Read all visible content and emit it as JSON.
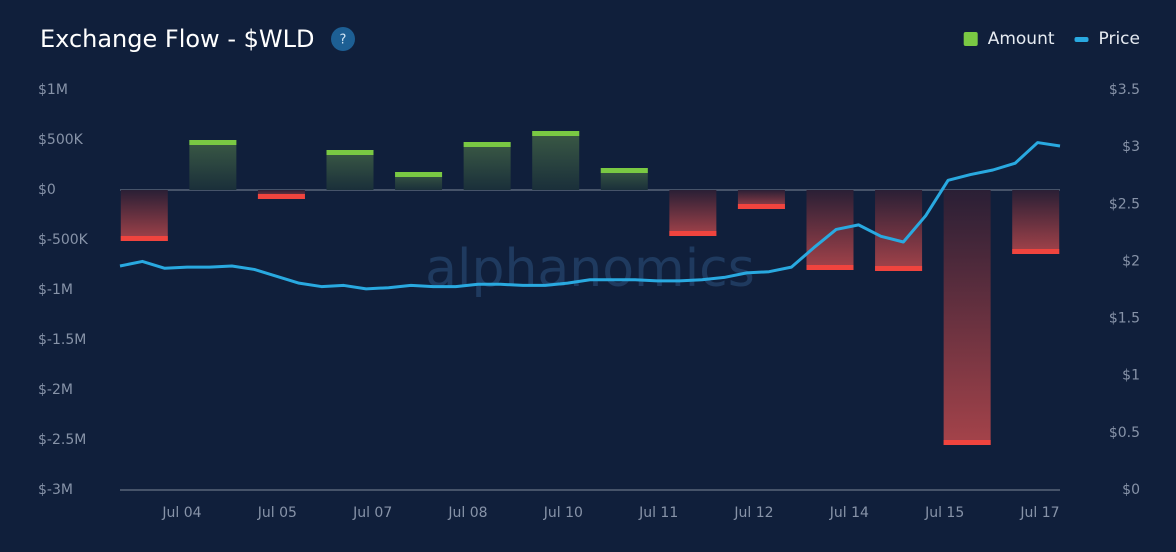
{
  "chart_data": {
    "type": "bar-line",
    "title": "Exchange Flow - $WLD",
    "help_icon": "?",
    "watermark": "alphanomics",
    "legend_position": "top-right",
    "xtick_labels": [
      "Jul 04",
      "Jul 05",
      "Jul 07",
      "Jul 08",
      "Jul 10",
      "Jul 11",
      "Jul 12",
      "Jul 14",
      "Jul 15",
      "Jul 17"
    ],
    "series": [
      {
        "name": "Amount",
        "color": "#7ac943",
        "negative_color": "#f0443e",
        "values": [
          -510000,
          500000,
          -90000,
          400000,
          180000,
          480000,
          590000,
          220000,
          -460000,
          -190000,
          -800000,
          -810000,
          -2550000,
          -640000
        ]
      },
      {
        "name": "Price",
        "color": "#29a9e0",
        "axis": "y2",
        "values": [
          1.96,
          2.0,
          1.94,
          1.95,
          1.95,
          1.96,
          1.93,
          1.87,
          1.81,
          1.78,
          1.79,
          1.76,
          1.77,
          1.79,
          1.78,
          1.78,
          1.8,
          1.8,
          1.79,
          1.79,
          1.81,
          1.84,
          1.84,
          1.84,
          1.83,
          1.83,
          1.84,
          1.86,
          1.9,
          1.91,
          1.95,
          2.12,
          2.28,
          2.32,
          2.22,
          2.17,
          2.4,
          2.71,
          2.76,
          2.8,
          2.86,
          3.04,
          3.01
        ]
      }
    ],
    "ylim": [
      -3000000,
      1000000
    ],
    "yticks": [
      {
        "value": 1000000,
        "label": "$1M"
      },
      {
        "value": 500000,
        "label": "$500K"
      },
      {
        "value": 0,
        "label": "$0"
      },
      {
        "value": -500000,
        "label": "$-500K"
      },
      {
        "value": -1000000,
        "label": "$-1M"
      },
      {
        "value": -1500000,
        "label": "$-1.5M"
      },
      {
        "value": -2000000,
        "label": "$-2M"
      },
      {
        "value": -2500000,
        "label": "$-2.5M"
      },
      {
        "value": -3000000,
        "label": "$-3M"
      }
    ],
    "y2lim": [
      0,
      3.5
    ],
    "y2ticks": [
      {
        "value": 3.5,
        "label": "$3.5"
      },
      {
        "value": 3,
        "label": "$3"
      },
      {
        "value": 2.5,
        "label": "$2.5"
      },
      {
        "value": 2,
        "label": "$2"
      },
      {
        "value": 1.5,
        "label": "$1.5"
      },
      {
        "value": 1,
        "label": "$1"
      },
      {
        "value": 0.5,
        "label": "$0.5"
      },
      {
        "value": 0,
        "label": "$0"
      }
    ]
  }
}
